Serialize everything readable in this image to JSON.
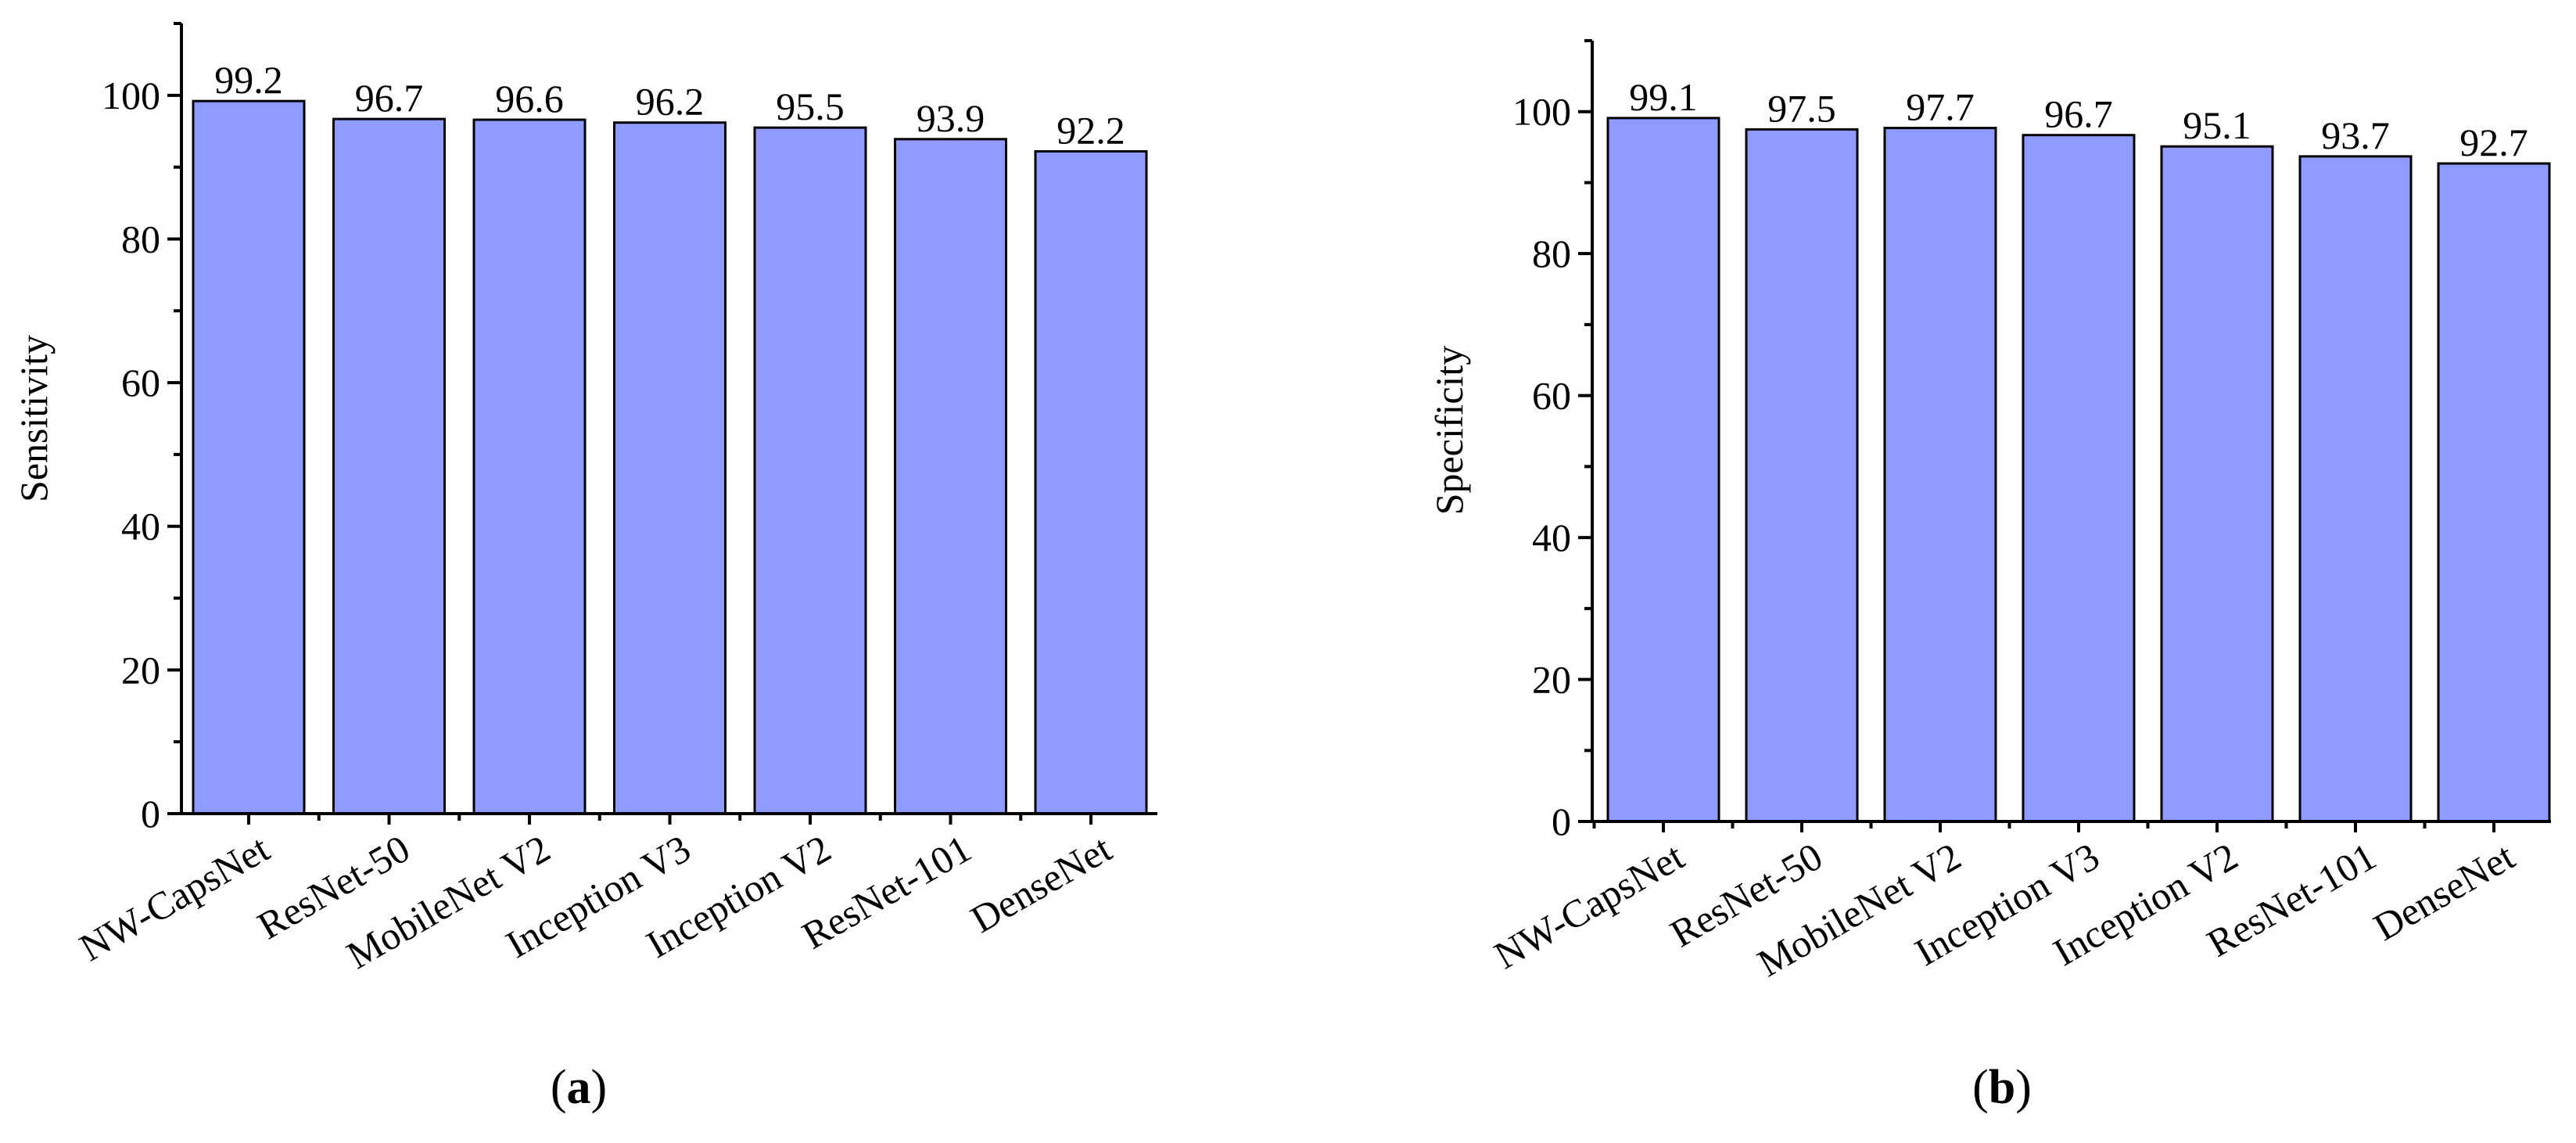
{
  "chart_data": [
    {
      "type": "bar",
      "categories": [
        "NW-CapsNet",
        "ResNet-50",
        "MobileNet V2",
        "Inception V3",
        "Inception V2",
        "ResNet-101",
        "DenseNet"
      ],
      "values": [
        99.2,
        96.7,
        96.6,
        96.2,
        95.5,
        93.9,
        92.2
      ],
      "value_labels": [
        "99.2",
        "96.7",
        "96.6",
        "96.2",
        "95.5",
        "93.9",
        "92.2"
      ],
      "ylabel": "Sensitivity",
      "ylim": [
        0,
        110
      ],
      "yticks": [
        0,
        20,
        40,
        60,
        80,
        100
      ],
      "caption_label": "a",
      "bar_color": "#8f9bff",
      "grid": false
    },
    {
      "type": "bar",
      "categories": [
        "NW-CapsNet",
        "ResNet-50",
        "MobileNet V2",
        "Inception V3",
        "Inception V2",
        "ResNet-101",
        "DenseNet"
      ],
      "values": [
        99.1,
        97.5,
        97.7,
        96.7,
        95.1,
        93.7,
        92.7
      ],
      "value_labels": [
        "99.1",
        "97.5",
        "97.7",
        "96.7",
        "95.1",
        "93.7",
        "92.7"
      ],
      "ylabel": "Specificity",
      "ylim": [
        0,
        110
      ],
      "yticks": [
        0,
        20,
        40,
        60,
        80,
        100
      ],
      "caption_label": "b",
      "bar_color": "#8f9bff",
      "grid": false
    }
  ]
}
